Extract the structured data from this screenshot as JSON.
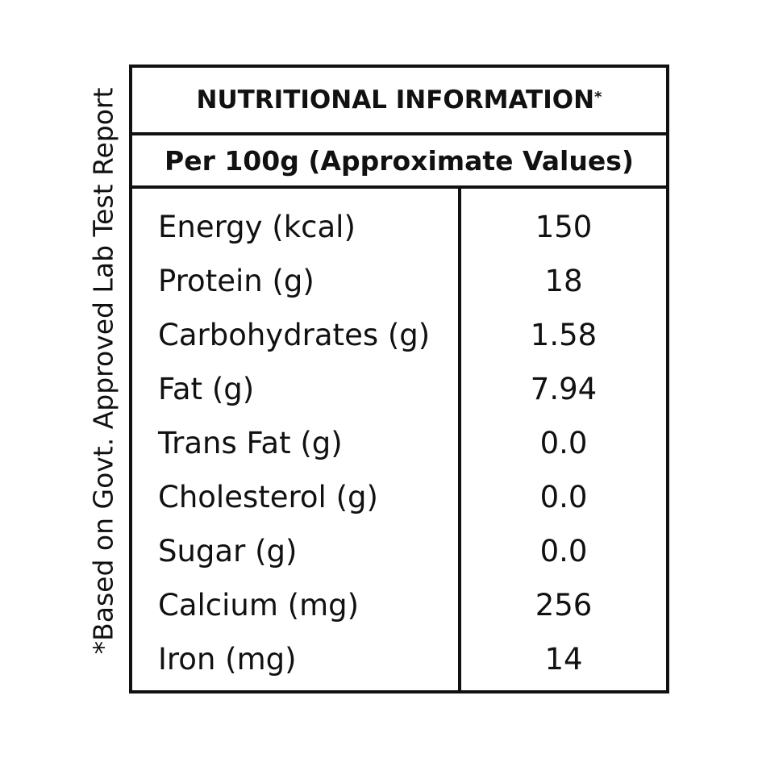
{
  "side_note": "*Based on Govt. Approved Lab Test Report",
  "header": {
    "title": "NUTRITIONAL INFORMATION",
    "title_mark": "*",
    "subtitle": "Per 100g (Approximate Values)"
  },
  "table": {
    "rows": [
      [
        "Energy (kcal)",
        "150"
      ],
      [
        "Protein (g)",
        "18"
      ],
      [
        "Carbohydrates (g)",
        "1.58"
      ],
      [
        "Fat (g)",
        "7.94"
      ],
      [
        "Trans Fat (g)",
        "0.0"
      ],
      [
        "Cholesterol (g)",
        "0.0"
      ],
      [
        "Sugar (g)",
        "0.0"
      ],
      [
        "Calcium (mg)",
        "256"
      ],
      [
        "Iron (mg)",
        "14"
      ]
    ]
  }
}
